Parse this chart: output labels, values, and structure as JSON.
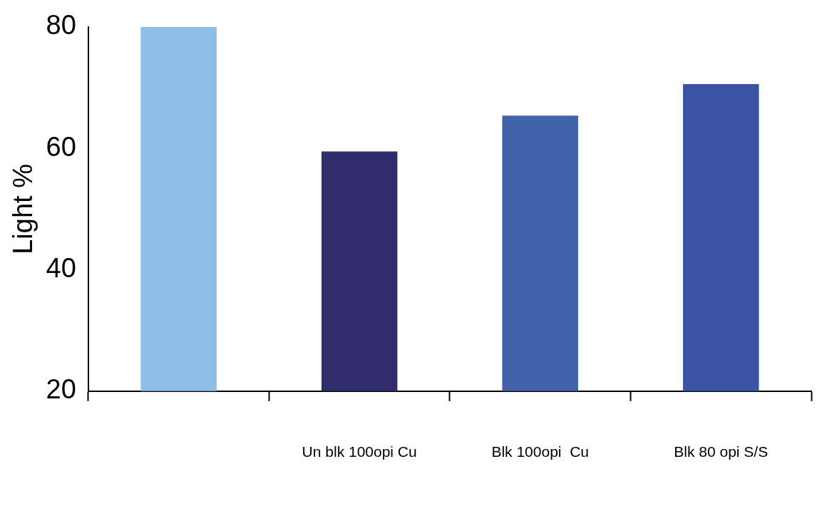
{
  "chart_data": {
    "type": "bar",
    "ylabel": "Light %",
    "categories": [
      null,
      "Un blk 100opi Cu",
      "Blk 100opi  Cu",
      "Blk 80 opi S/S"
    ],
    "values": [
      80,
      59.5,
      65.4,
      70.6
    ],
    "colors": [
      "#8ebde6",
      "#312c6c",
      "#4263ab",
      "#3b53a4"
    ],
    "ylim": [
      20,
      80
    ],
    "yticks": [
      20,
      40,
      60,
      80
    ],
    "grid": false,
    "legend": false
  }
}
